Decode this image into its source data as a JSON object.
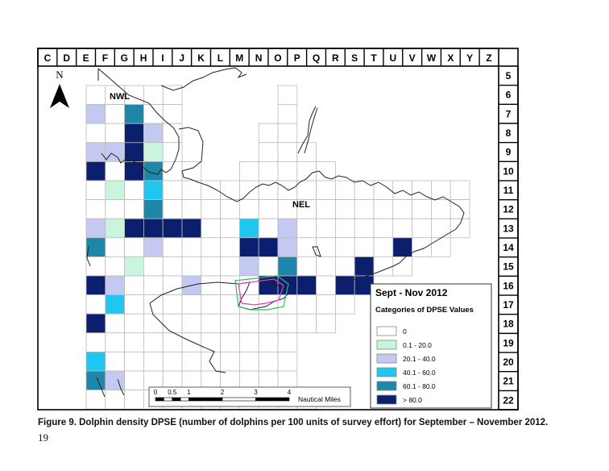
{
  "columns": [
    "C",
    "D",
    "E",
    "F",
    "G",
    "H",
    "I",
    "J",
    "K",
    "L",
    "M",
    "N",
    "O",
    "P",
    "Q",
    "R",
    "S",
    "T",
    "U",
    "V",
    "W",
    "X",
    "Y",
    "Z"
  ],
  "rows": [
    "5",
    "6",
    "7",
    "8",
    "9",
    "10",
    "11",
    "12",
    "13",
    "14",
    "15",
    "16",
    "17",
    "18",
    "19",
    "20",
    "21",
    "22"
  ],
  "north_label": "N",
  "region_labels": {
    "nwl": "NWL",
    "nel": "NEL"
  },
  "legend": {
    "title": "Sept - Nov 2012",
    "subtitle": "Categories of DPSE Values",
    "items": [
      {
        "label": "0",
        "color": "#ffffff"
      },
      {
        "label": "0.1 - 20.0",
        "color": "#c8f5dc"
      },
      {
        "label": "20.1 - 40.0",
        "color": "#c3c9f0"
      },
      {
        "label": "40.1 - 60.0",
        "color": "#1fc6ef"
      },
      {
        "label": "60.1 - 80.0",
        "color": "#1e87a9"
      },
      {
        "label": "> 80.0",
        "color": "#0c1f6e"
      }
    ]
  },
  "scale_bar": {
    "ticks": [
      "0",
      "0.5",
      "1",
      "2",
      "3",
      "4"
    ],
    "unit": "Nautical Miles"
  },
  "grid_cells": [
    [
      "F",
      "6"
    ],
    [
      "G",
      "6"
    ],
    [
      "H",
      "6"
    ],
    [
      "I",
      "6"
    ],
    [
      "J",
      "6"
    ],
    [
      "F",
      "7",
      2
    ],
    [
      "G",
      "7"
    ],
    [
      "H",
      "7",
      4
    ],
    [
      "I",
      "7"
    ],
    [
      "J",
      "7"
    ],
    [
      "F",
      "8"
    ],
    [
      "G",
      "8"
    ],
    [
      "H",
      "8",
      5
    ],
    [
      "I",
      "8",
      2
    ],
    [
      "J",
      "8"
    ],
    [
      "F",
      "9",
      2
    ],
    [
      "G",
      "9",
      2
    ],
    [
      "H",
      "9",
      5
    ],
    [
      "I",
      "9",
      1
    ],
    [
      "J",
      "9"
    ],
    [
      "F",
      "10",
      5
    ],
    [
      "G",
      "10"
    ],
    [
      "H",
      "10",
      5
    ],
    [
      "I",
      "10",
      4
    ],
    [
      "J",
      "10"
    ],
    [
      "K",
      "10"
    ],
    [
      "F",
      "11"
    ],
    [
      "G",
      "11",
      1
    ],
    [
      "H",
      "11"
    ],
    [
      "I",
      "11",
      3
    ],
    [
      "J",
      "11"
    ],
    [
      "K",
      "11"
    ],
    [
      "L",
      "11"
    ],
    [
      "M",
      "11"
    ],
    [
      "N",
      "11"
    ],
    [
      "O",
      "11"
    ],
    [
      "P",
      "11"
    ],
    [
      "Q",
      "11"
    ],
    [
      "R",
      "11"
    ],
    [
      "S",
      "11"
    ],
    [
      "T",
      "11"
    ],
    [
      "U",
      "11"
    ],
    [
      "V",
      "11"
    ],
    [
      "W",
      "11"
    ],
    [
      "X",
      "11"
    ],
    [
      "Y",
      "11"
    ],
    [
      "F",
      "12"
    ],
    [
      "G",
      "12"
    ],
    [
      "H",
      "12"
    ],
    [
      "I",
      "12",
      4
    ],
    [
      "J",
      "12"
    ],
    [
      "K",
      "12"
    ],
    [
      "L",
      "12"
    ],
    [
      "M",
      "12"
    ],
    [
      "N",
      "12"
    ],
    [
      "O",
      "12"
    ],
    [
      "P",
      "12"
    ],
    [
      "Q",
      "12"
    ],
    [
      "R",
      "12"
    ],
    [
      "S",
      "12"
    ],
    [
      "T",
      "12"
    ],
    [
      "U",
      "12"
    ],
    [
      "V",
      "12"
    ],
    [
      "W",
      "12"
    ],
    [
      "X",
      "12"
    ],
    [
      "Y",
      "12"
    ],
    [
      "F",
      "13",
      2
    ],
    [
      "G",
      "13",
      1
    ],
    [
      "H",
      "13",
      5
    ],
    [
      "I",
      "13",
      5
    ],
    [
      "J",
      "13",
      5
    ],
    [
      "K",
      "13",
      5
    ],
    [
      "L",
      "13"
    ],
    [
      "M",
      "13"
    ],
    [
      "N",
      "13",
      3
    ],
    [
      "O",
      "13"
    ],
    [
      "P",
      "13",
      2
    ],
    [
      "Q",
      "13"
    ],
    [
      "R",
      "13"
    ],
    [
      "S",
      "13"
    ],
    [
      "T",
      "13"
    ],
    [
      "U",
      "13"
    ],
    [
      "V",
      "13"
    ],
    [
      "W",
      "13"
    ],
    [
      "X",
      "13"
    ],
    [
      "Y",
      "13"
    ],
    [
      "F",
      "14",
      4
    ],
    [
      "G",
      "14"
    ],
    [
      "H",
      "14"
    ],
    [
      "I",
      "14",
      2
    ],
    [
      "J",
      "14"
    ],
    [
      "K",
      "14"
    ],
    [
      "L",
      "14"
    ],
    [
      "M",
      "14"
    ],
    [
      "N",
      "14",
      5
    ],
    [
      "O",
      "14",
      5
    ],
    [
      "P",
      "14",
      2
    ],
    [
      "Q",
      "14"
    ],
    [
      "R",
      "14"
    ],
    [
      "S",
      "14"
    ],
    [
      "T",
      "14"
    ],
    [
      "U",
      "14"
    ],
    [
      "V",
      "14",
      5
    ],
    [
      "W",
      "14"
    ],
    [
      "X",
      "14"
    ],
    [
      "F",
      "15"
    ],
    [
      "G",
      "15"
    ],
    [
      "H",
      "15",
      1
    ],
    [
      "I",
      "15"
    ],
    [
      "J",
      "15"
    ],
    [
      "K",
      "15"
    ],
    [
      "L",
      "15"
    ],
    [
      "M",
      "15"
    ],
    [
      "N",
      "15",
      2
    ],
    [
      "O",
      "15"
    ],
    [
      "P",
      "15",
      4
    ],
    [
      "Q",
      "15"
    ],
    [
      "R",
      "15"
    ],
    [
      "S",
      "15"
    ],
    [
      "T",
      "15",
      5
    ],
    [
      "U",
      "15"
    ],
    [
      "V",
      "15"
    ],
    [
      "F",
      "16",
      5
    ],
    [
      "G",
      "16",
      2
    ],
    [
      "H",
      "16"
    ],
    [
      "I",
      "16"
    ],
    [
      "J",
      "16"
    ],
    [
      "K",
      "16",
      2
    ],
    [
      "L",
      "16"
    ],
    [
      "M",
      "16"
    ],
    [
      "N",
      "16"
    ],
    [
      "O",
      "16",
      5
    ],
    [
      "P",
      "16",
      5
    ],
    [
      "Q",
      "16",
      5
    ],
    [
      "R",
      "16"
    ],
    [
      "S",
      "16",
      5
    ],
    [
      "T",
      "16",
      5
    ],
    [
      "F",
      "17"
    ],
    [
      "G",
      "17",
      3
    ],
    [
      "H",
      "17"
    ],
    [
      "I",
      "17"
    ],
    [
      "J",
      "17"
    ],
    [
      "K",
      "17"
    ],
    [
      "L",
      "17"
    ],
    [
      "M",
      "17"
    ],
    [
      "N",
      "17"
    ],
    [
      "O",
      "17"
    ],
    [
      "P",
      "17"
    ],
    [
      "Q",
      "17"
    ],
    [
      "R",
      "17"
    ],
    [
      "S",
      "17"
    ],
    [
      "F",
      "18",
      5
    ],
    [
      "G",
      "18"
    ],
    [
      "H",
      "18"
    ],
    [
      "I",
      "18"
    ],
    [
      "J",
      "18"
    ],
    [
      "K",
      "18"
    ],
    [
      "L",
      "18"
    ],
    [
      "M",
      "18"
    ],
    [
      "N",
      "18"
    ],
    [
      "O",
      "18"
    ],
    [
      "P",
      "18"
    ],
    [
      "Q",
      "18"
    ],
    [
      "R",
      "18"
    ],
    [
      "F",
      "19"
    ],
    [
      "G",
      "19"
    ],
    [
      "H",
      "19"
    ],
    [
      "I",
      "19"
    ],
    [
      "J",
      "19"
    ],
    [
      "K",
      "19"
    ],
    [
      "L",
      "19"
    ],
    [
      "M",
      "19"
    ],
    [
      "N",
      "19"
    ],
    [
      "O",
      "19"
    ],
    [
      "P",
      "19"
    ],
    [
      "F",
      "20",
      3
    ],
    [
      "G",
      "20"
    ],
    [
      "H",
      "20"
    ],
    [
      "I",
      "20"
    ],
    [
      "J",
      "20"
    ],
    [
      "K",
      "20"
    ],
    [
      "L",
      "20"
    ],
    [
      "M",
      "20"
    ],
    [
      "N",
      "20"
    ],
    [
      "O",
      "20"
    ],
    [
      "P",
      "20"
    ],
    [
      "F",
      "21",
      4
    ],
    [
      "G",
      "21",
      2
    ],
    [
      "H",
      "21"
    ],
    [
      "I",
      "21"
    ],
    [
      "J",
      "21"
    ],
    [
      "K",
      "21"
    ],
    [
      "L",
      "21"
    ],
    [
      "M",
      "21"
    ],
    [
      "N",
      "21"
    ],
    [
      "O",
      "21"
    ],
    [
      "P",
      "21"
    ],
    [
      "F",
      "22"
    ],
    [
      "G",
      "22"
    ],
    [
      "H",
      "22"
    ],
    [
      "I",
      "22"
    ],
    [
      "J",
      "22"
    ],
    [
      "K",
      "22"
    ],
    [
      "L",
      "22"
    ],
    [
      "M",
      "22"
    ],
    [
      "N",
      "22"
    ],
    [
      "O",
      "22"
    ],
    [
      "P",
      "22"
    ],
    [
      "Q",
      "22"
    ],
    [
      "O",
      "8"
    ],
    [
      "P",
      "8"
    ],
    [
      "O",
      "9"
    ],
    [
      "P",
      "9"
    ],
    [
      "Q",
      "9"
    ],
    [
      "N",
      "10"
    ],
    [
      "O",
      "10"
    ],
    [
      "P",
      "10"
    ],
    [
      "Q",
      "10"
    ],
    [
      "R",
      "10"
    ],
    [
      "P",
      "7"
    ],
    [
      "P",
      "6"
    ]
  ],
  "caption": "Figure 9. Dolphin density DPSE (number of dolphins per 100 units of survey effort) for September – November 2012.",
  "page_number": "19"
}
